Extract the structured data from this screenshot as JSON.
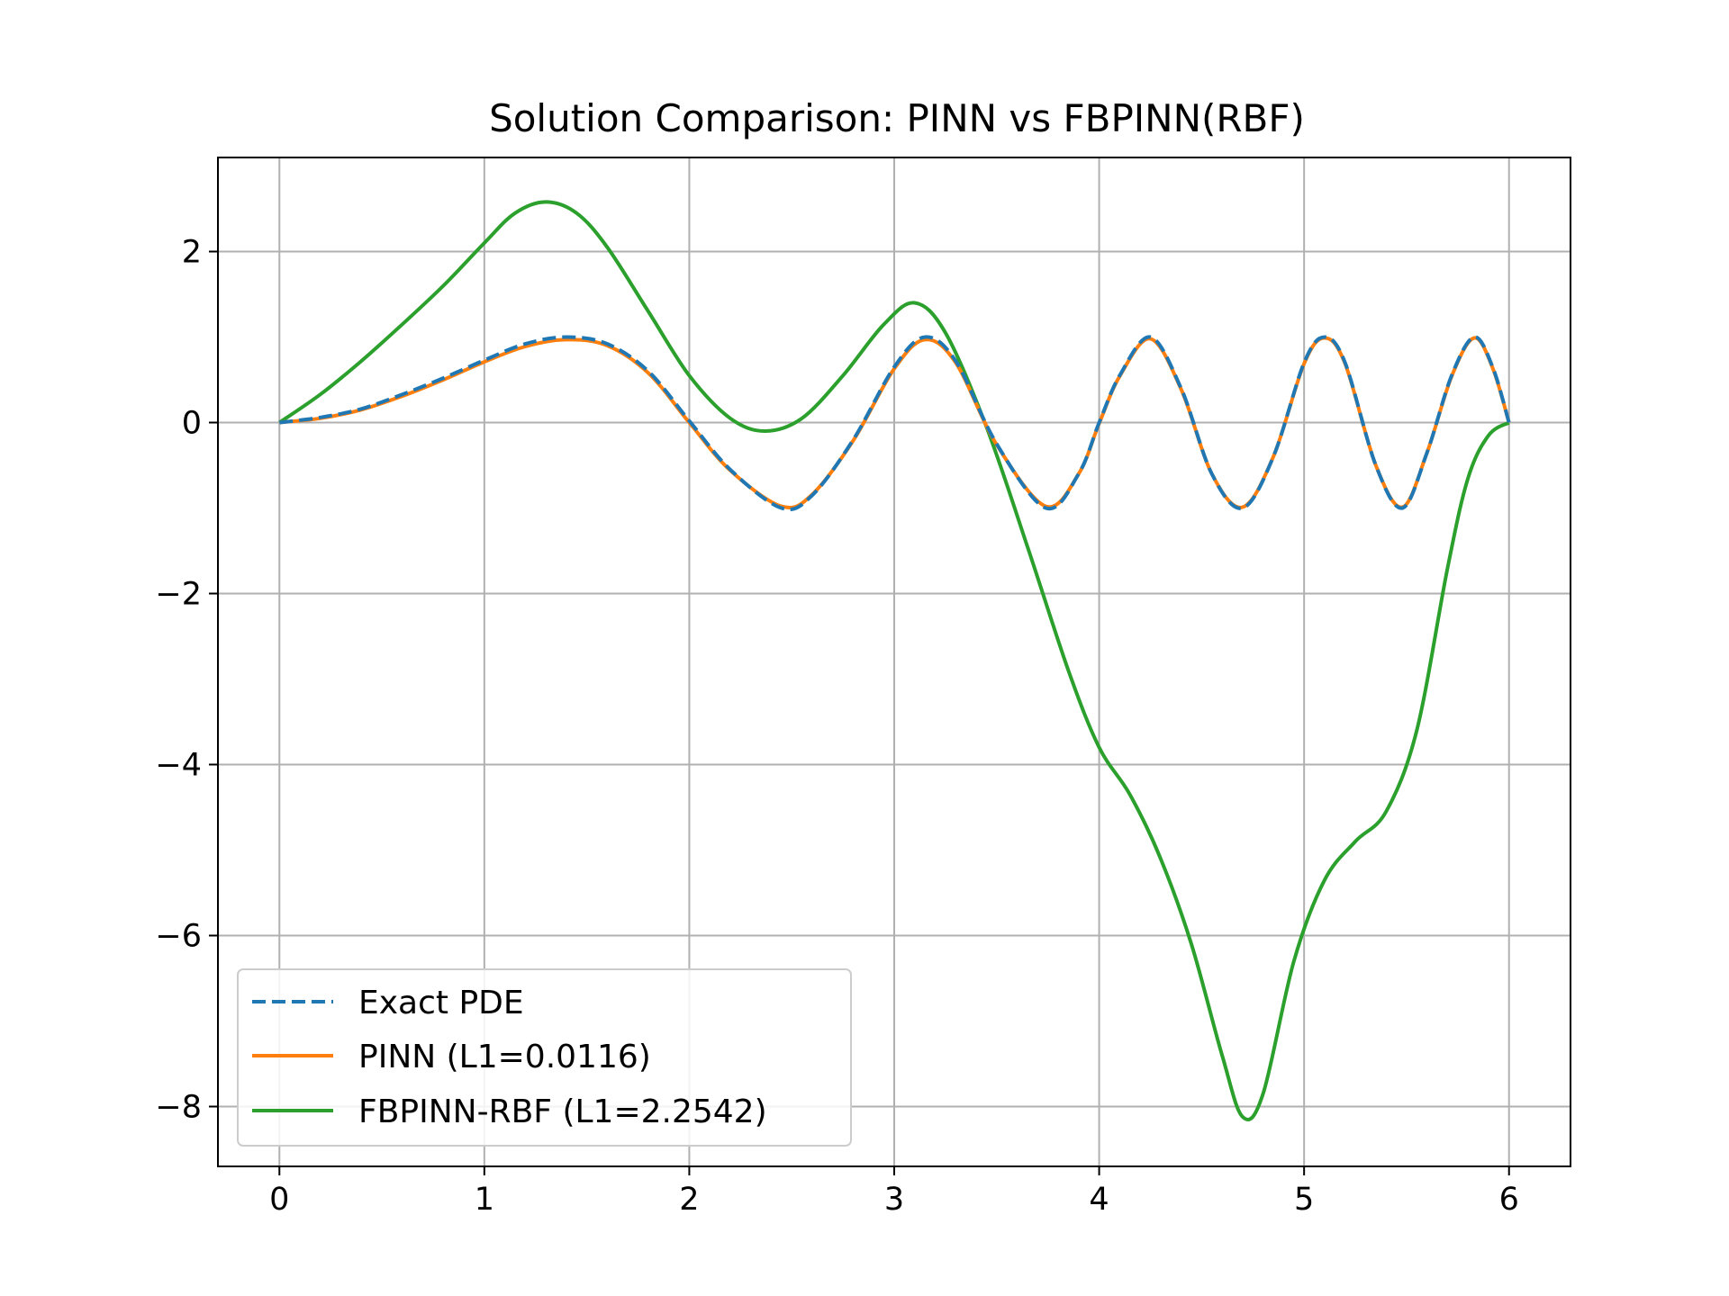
{
  "chart_data": {
    "type": "line",
    "title": "Solution Comparison: PINN vs FBPINN(RBF)",
    "xlabel": "",
    "ylabel": "",
    "xlim": [
      -0.3,
      6.3
    ],
    "ylim": [
      -8.7,
      3.1
    ],
    "xticks": [
      0,
      1,
      2,
      3,
      4,
      5,
      6
    ],
    "xtick_labels": [
      "0",
      "1",
      "2",
      "3",
      "4",
      "5",
      "6"
    ],
    "yticks": [
      2,
      0,
      -2,
      -4,
      -6,
      -8
    ],
    "ytick_labels": [
      "2",
      "0",
      "−2",
      "−4",
      "−6",
      "−8"
    ],
    "grid": true,
    "legend": {
      "position": "lower-left"
    },
    "series": [
      {
        "name": "Exact PDE",
        "color": "#1f77b4",
        "style": "dashed",
        "x": [
          0,
          0.2,
          0.4,
          0.6,
          0.8,
          1.0,
          1.2,
          1.4,
          1.6,
          1.8,
          2.0,
          2.2,
          2.45,
          2.6,
          2.8,
          3.0,
          3.15,
          3.3,
          3.5,
          3.74,
          3.9,
          4.0,
          4.1,
          4.25,
          4.4,
          4.55,
          4.7,
          4.85,
          5.0,
          5.1,
          5.2,
          5.35,
          5.48,
          5.6,
          5.72,
          5.83,
          5.92,
          6.0
        ],
        "y": [
          0,
          0.06,
          0.16,
          0.33,
          0.52,
          0.73,
          0.92,
          1.0,
          0.92,
          0.6,
          0.02,
          -0.55,
          -1.0,
          -0.85,
          -0.2,
          0.65,
          1.0,
          0.72,
          -0.25,
          -1.0,
          -0.6,
          0.0,
          0.55,
          1.0,
          0.4,
          -0.6,
          -1.0,
          -0.4,
          0.7,
          1.0,
          0.7,
          -0.5,
          -1.0,
          -0.35,
          0.55,
          1.0,
          0.65,
          0.0
        ]
      },
      {
        "name": "PINN (L1=0.0116)",
        "color": "#ff7f0e",
        "style": "solid",
        "x": [
          0,
          0.2,
          0.4,
          0.6,
          0.8,
          1.0,
          1.2,
          1.4,
          1.6,
          1.8,
          2.0,
          2.2,
          2.45,
          2.6,
          2.8,
          3.0,
          3.15,
          3.3,
          3.5,
          3.74,
          3.9,
          4.0,
          4.1,
          4.25,
          4.4,
          4.55,
          4.7,
          4.85,
          5.0,
          5.1,
          5.2,
          5.35,
          5.48,
          5.6,
          5.72,
          5.83,
          5.92,
          6.0
        ],
        "y": [
          0,
          0.05,
          0.15,
          0.31,
          0.5,
          0.71,
          0.89,
          0.97,
          0.9,
          0.58,
          0.0,
          -0.56,
          -0.98,
          -0.84,
          -0.21,
          0.63,
          0.97,
          0.7,
          -0.26,
          -0.98,
          -0.6,
          -0.01,
          0.54,
          0.98,
          0.39,
          -0.6,
          -0.99,
          -0.4,
          0.69,
          0.99,
          0.69,
          -0.5,
          -0.99,
          -0.35,
          0.54,
          0.99,
          0.64,
          0.0
        ]
      },
      {
        "name": "FBPINN-RBF (L1=2.2542)",
        "color": "#2ca02c",
        "style": "solid",
        "x": [
          0,
          0.2,
          0.4,
          0.6,
          0.8,
          1.0,
          1.15,
          1.3,
          1.45,
          1.6,
          1.8,
          2.0,
          2.2,
          2.37,
          2.55,
          2.75,
          2.95,
          3.1,
          3.25,
          3.45,
          3.65,
          3.85,
          4.0,
          4.15,
          4.3,
          4.45,
          4.6,
          4.7,
          4.8,
          4.95,
          5.1,
          5.25,
          5.4,
          5.55,
          5.7,
          5.8,
          5.9,
          6.0
        ],
        "y": [
          0,
          0.33,
          0.72,
          1.15,
          1.6,
          2.1,
          2.45,
          2.58,
          2.45,
          2.05,
          1.3,
          0.55,
          0.05,
          -0.1,
          0.05,
          0.55,
          1.15,
          1.4,
          1.05,
          -0.05,
          -1.45,
          -2.9,
          -3.8,
          -4.35,
          -5.1,
          -6.1,
          -7.4,
          -8.12,
          -7.85,
          -6.3,
          -5.35,
          -4.9,
          -4.55,
          -3.6,
          -1.7,
          -0.65,
          -0.15,
          0
        ]
      }
    ]
  }
}
